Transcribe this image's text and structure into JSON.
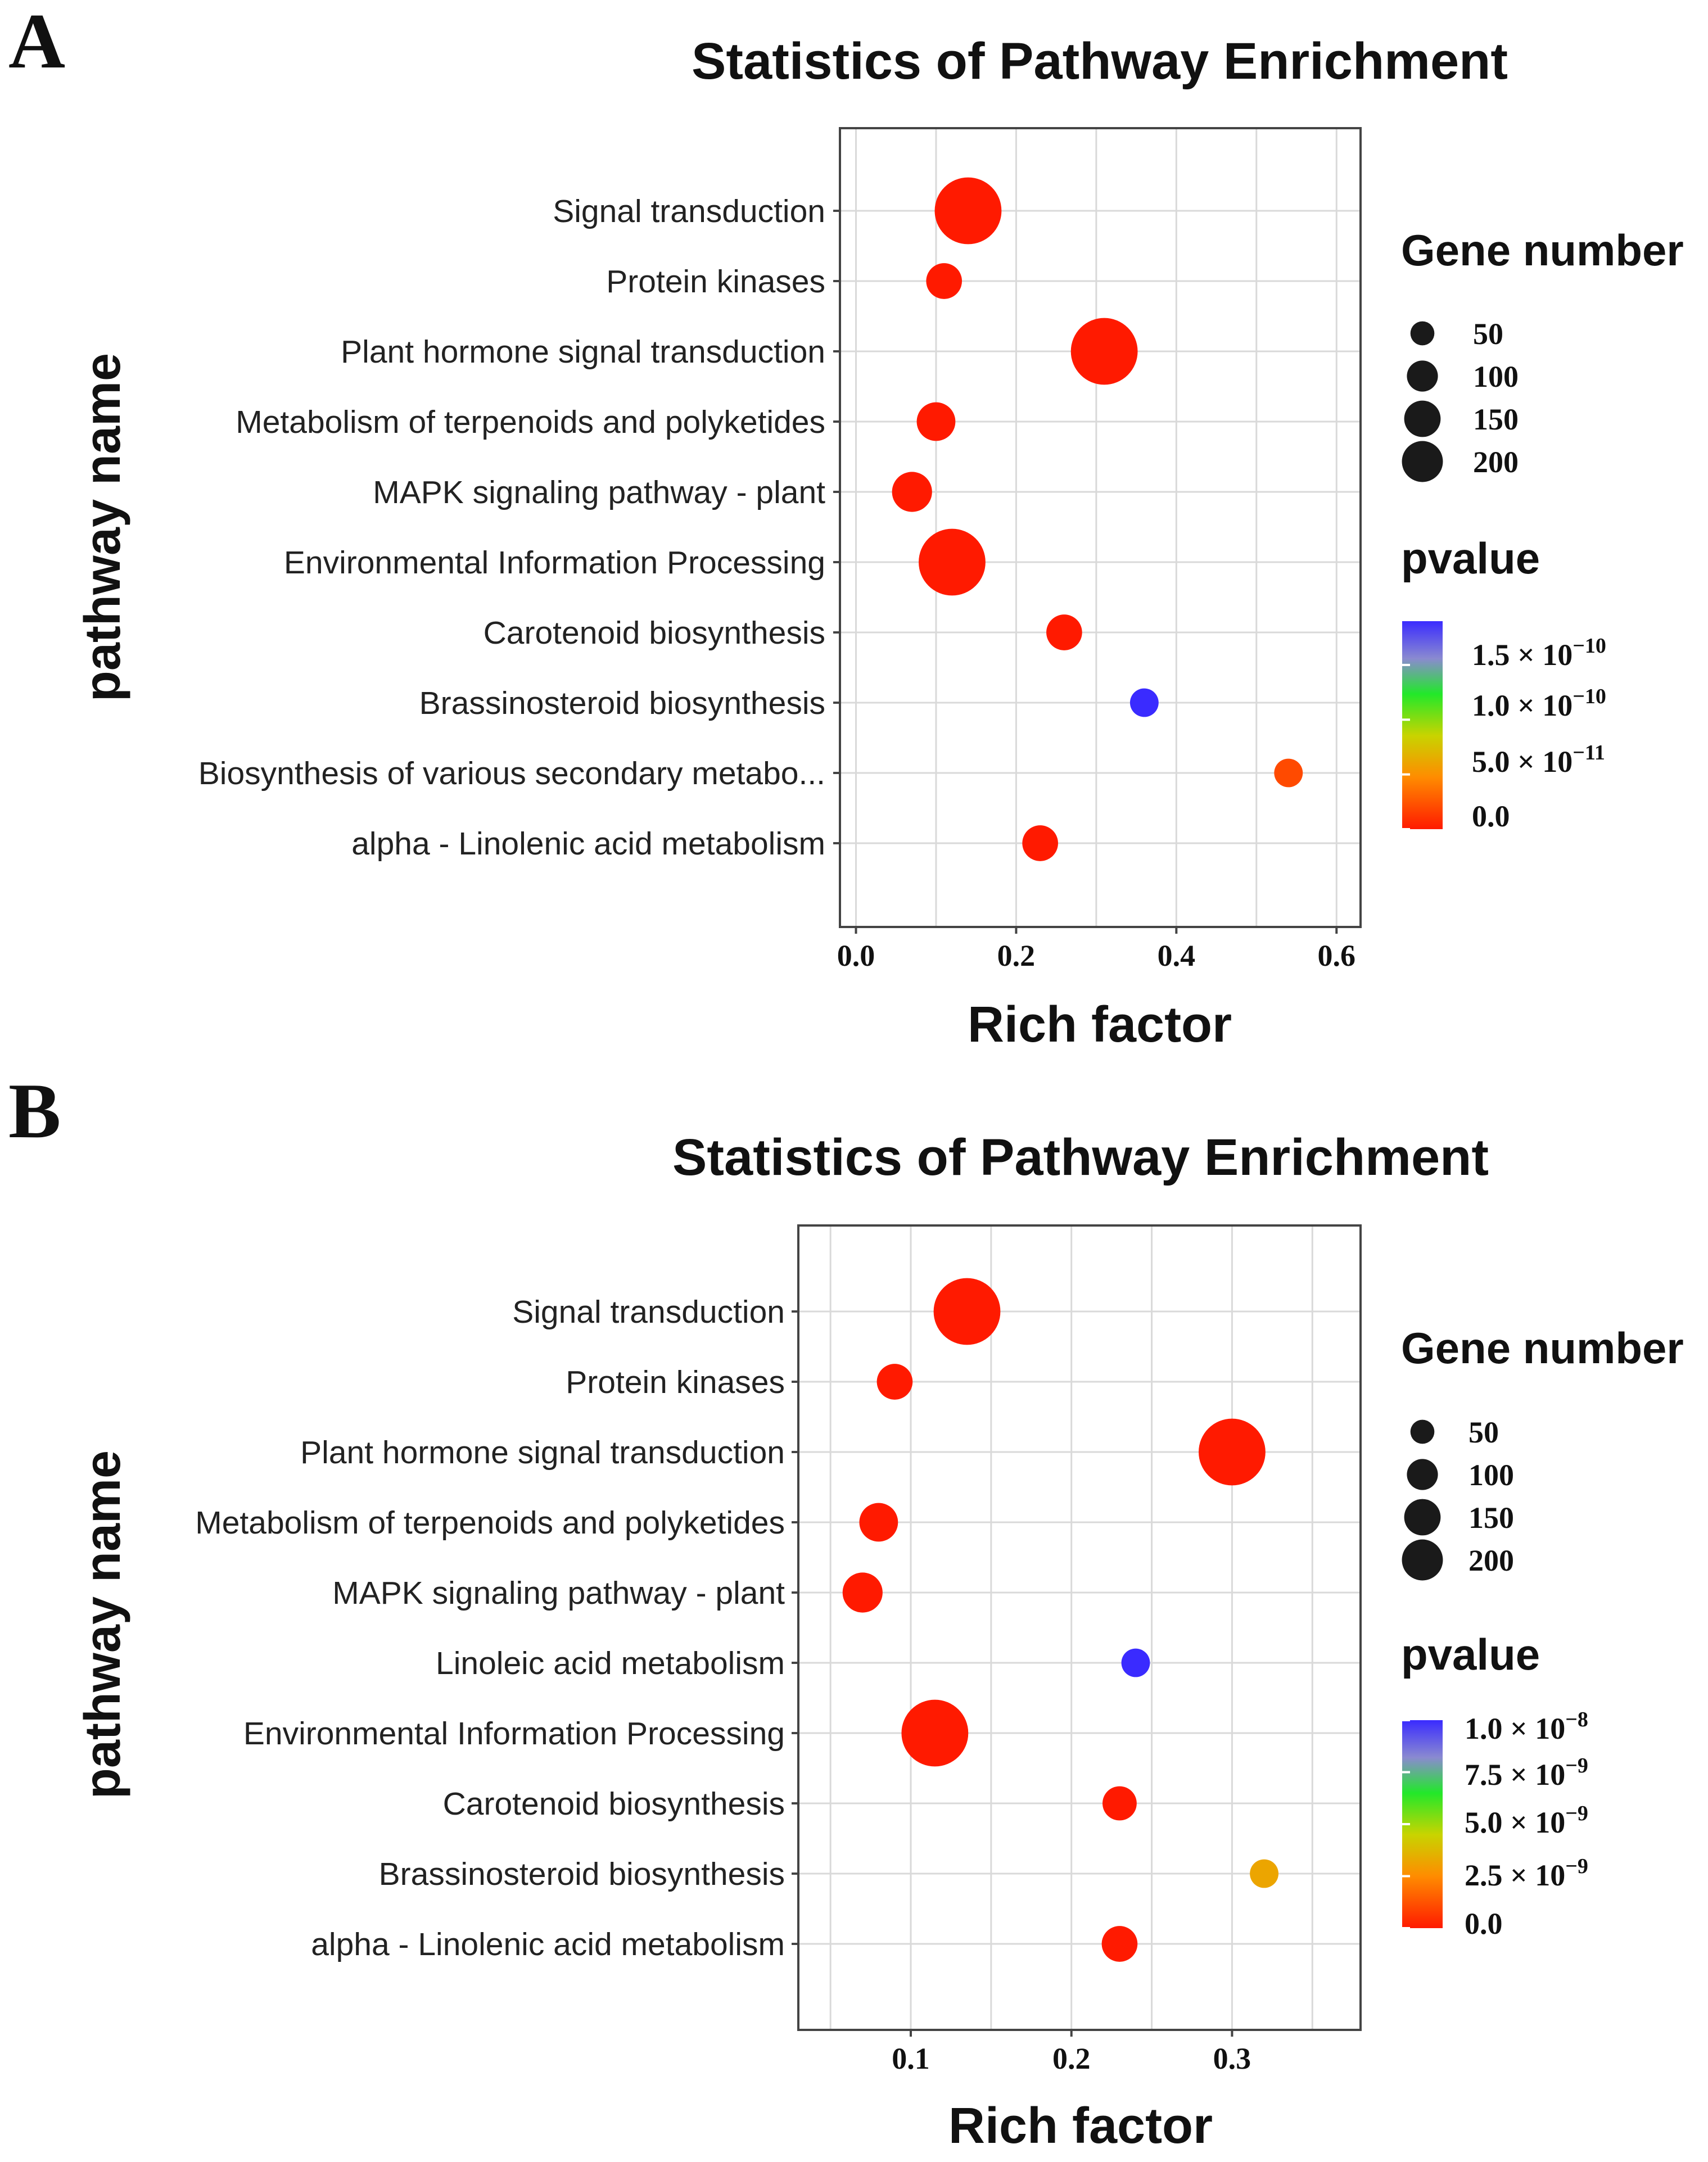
{
  "chart_data": [
    {
      "panel": "A",
      "type": "scatter",
      "title": "Statistics of Pathway Enrichment",
      "xlabel": "Rich factor",
      "ylabel": "pathway  name",
      "xlim": [
        -0.02,
        0.63
      ],
      "xticks": [
        "0.0",
        "0.2",
        "0.4",
        "0.6"
      ],
      "xtick_values": [
        0.0,
        0.2,
        0.4,
        0.6
      ],
      "categories": [
        "Signal transduction",
        "Protein kinases",
        "Plant hormone signal transduction",
        "Metabolism of terpenoids and polyketides",
        "MAPK signaling pathway - plant",
        "Environmental Information Processing",
        "Carotenoid biosynthesis",
        "Brassinosteroid biosynthesis",
        "Biosynthesis of various secondary metabo...",
        "alpha - Linolenic acid metabolism"
      ],
      "x": [
        0.14,
        0.11,
        0.31,
        0.1,
        0.07,
        0.12,
        0.26,
        0.36,
        0.54,
        0.23
      ],
      "gene_number": [
        205,
        40,
        205,
        50,
        55,
        205,
        40,
        20,
        20,
        40
      ],
      "pvalue": [
        0.0,
        0.0,
        0.0,
        0.0,
        0.0,
        0.0,
        0.0,
        1.9e-10,
        2e-11,
        0.0
      ],
      "size_legend": {
        "title": "Gene  number",
        "values": [
          50,
          100,
          150,
          200
        ],
        "labels": [
          "50",
          "100",
          "150",
          "200"
        ]
      },
      "color_legend": {
        "title": "pvalue",
        "min": 0,
        "max": 1.9e-10,
        "ticks": [
          {
            "value": 1.5e-10,
            "mantissa": "1.5 × 10",
            "exp": "−10"
          },
          {
            "value": 1e-10,
            "mantissa": "1.0 × 10",
            "exp": "−10"
          },
          {
            "value": 5e-11,
            "mantissa": "5.0 × 10",
            "exp": "−11"
          },
          {
            "value": 0.0,
            "mantissa": "0.0",
            "exp": ""
          }
        ]
      },
      "colors": {
        "low": "#ff1a00",
        "mid_low": "#ff8c00",
        "mid": "#c8d400",
        "mid_high": "#22e82a",
        "high": "#3a2bff"
      }
    },
    {
      "panel": "B",
      "type": "scatter",
      "title": "Statistics of Pathway Enrichment",
      "xlabel": "Rich factor",
      "ylabel": "pathway  name",
      "xlim": [
        0.03,
        0.38
      ],
      "xticks": [
        "0.1",
        "0.2",
        "0.3"
      ],
      "xtick_values": [
        0.1,
        0.2,
        0.3
      ],
      "categories": [
        "Signal transduction",
        "Protein kinases",
        "Plant hormone signal transduction",
        "Metabolism of terpenoids and polyketides",
        "MAPK signaling pathway - plant",
        "Linoleic acid metabolism",
        "Environmental Information Processing",
        "Carotenoid biosynthesis",
        "Brassinosteroid biosynthesis",
        "alpha - Linolenic acid metabolism"
      ],
      "x": [
        0.135,
        0.09,
        0.3,
        0.08,
        0.07,
        0.24,
        0.115,
        0.23,
        0.32,
        0.23
      ],
      "gene_number": [
        205,
        40,
        205,
        50,
        55,
        20,
        205,
        35,
        20,
        40
      ],
      "pvalue": [
        0.0,
        0.0,
        0.0,
        0.0,
        0.0,
        1e-08,
        0.0,
        0.0,
        3.2e-09,
        0.0
      ],
      "size_legend": {
        "title": "Gene  number",
        "values": [
          50,
          100,
          150,
          200
        ],
        "labels": [
          "50",
          "100",
          "150",
          "200"
        ]
      },
      "color_legend": {
        "title": "pvalue",
        "min": 0,
        "max": 1e-08,
        "ticks": [
          {
            "value": 1e-08,
            "mantissa": "1.0 × 10",
            "exp": "−8"
          },
          {
            "value": 7.5e-09,
            "mantissa": "7.5 × 10",
            "exp": "−9"
          },
          {
            "value": 5e-09,
            "mantissa": "5.0 × 10",
            "exp": "−9"
          },
          {
            "value": 2.5e-09,
            "mantissa": "2.5 × 10",
            "exp": "−9"
          },
          {
            "value": 0.0,
            "mantissa": "0.0",
            "exp": ""
          }
        ]
      },
      "colors": {
        "low": "#ff1a00",
        "mid_low": "#ff8c00",
        "mid": "#c8d400",
        "mid_high": "#22e82a",
        "high": "#3a2bff"
      }
    }
  ]
}
